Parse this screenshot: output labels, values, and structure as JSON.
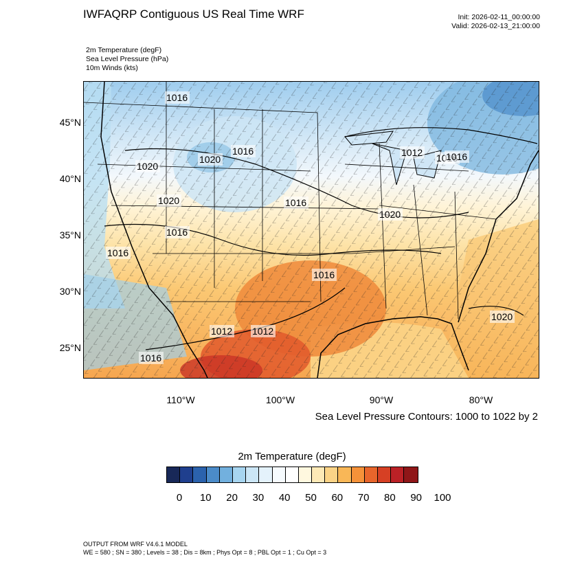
{
  "header": {
    "title": "IWFAQRP Contiguous US Real Time WRF",
    "init": "Init: 2026-02-11_00:00:00",
    "valid": "Valid: 2026-02-13_21:00:00"
  },
  "variables": [
    "2m Temperature   (degF)",
    "Sea Level Pressure   (hPa)",
    "10m Winds   (kts)"
  ],
  "map": {
    "lat_labels": [
      "45°N",
      "40°N",
      "35°N",
      "30°N",
      "25°N"
    ],
    "lon_labels": [
      "110°W",
      "100°W",
      "90°W",
      "80°W"
    ],
    "contour_labels": [
      "1016",
      "1016",
      "1020",
      "1020",
      "1016",
      "1020",
      "1016",
      "1016",
      "1016",
      "1020",
      "1016",
      "1016",
      "1012",
      "1012",
      "1016",
      "1020",
      "1012",
      "1016"
    ],
    "slp_note": "Sea Level Pressure Contours: 1000 to 1022 by 2"
  },
  "colorbar": {
    "title": "2m Temperature  (degF)",
    "colors": [
      "#182858",
      "#1f3f8e",
      "#2b62ad",
      "#4b8bc9",
      "#72b0de",
      "#a7d5f0",
      "#cbe6f6",
      "#e4f2fb",
      "#f6fbfe",
      "#ffffff",
      "#fff8df",
      "#fde9b6",
      "#fbd386",
      "#f9b757",
      "#f59239",
      "#e8652b",
      "#d64024",
      "#bb2126",
      "#8f1618"
    ],
    "labels": [
      "0",
      "10",
      "20",
      "30",
      "40",
      "50",
      "60",
      "70",
      "80",
      "90",
      "100"
    ]
  },
  "footer": {
    "line1": "OUTPUT FROM WRF V4.6.1 MODEL",
    "line2": "WE = 580 ; SN = 380 ; Levels = 38 ; Dis = 8km ; Phys Opt = 8 ; PBL Opt = 1 ; Cu Opt = 3"
  }
}
